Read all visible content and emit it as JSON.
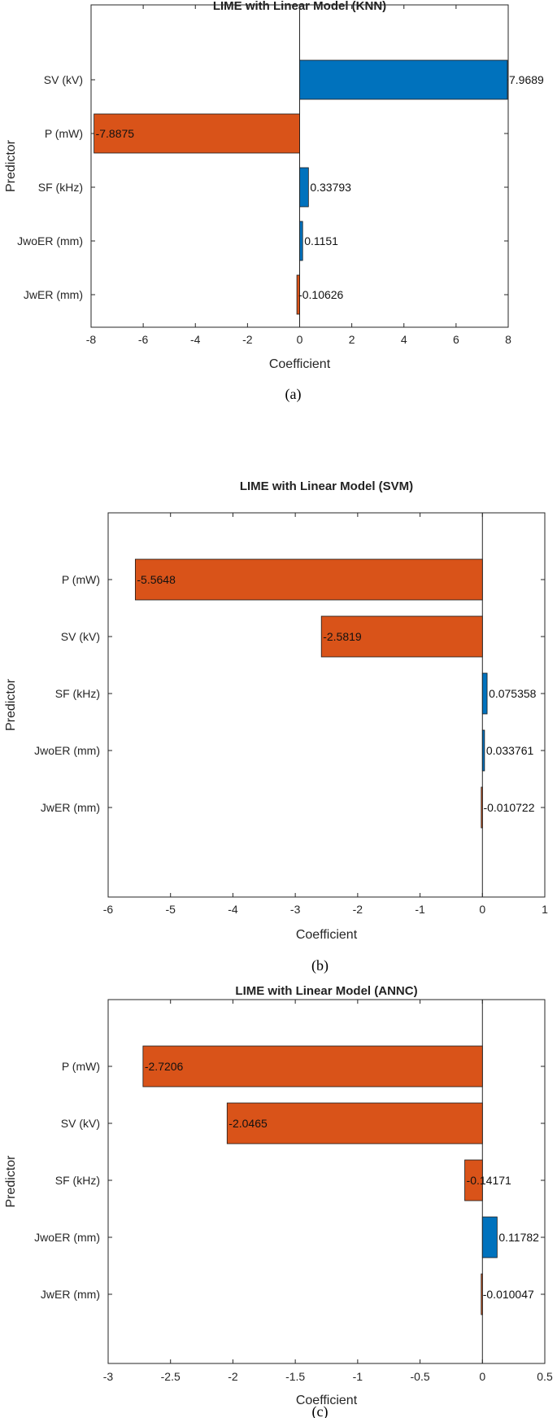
{
  "colors": {
    "positive": "#0072BD",
    "negative": "#D95319",
    "axis": "#262626"
  },
  "chart_data": [
    {
      "type": "bar",
      "orientation": "horizontal",
      "title": "LIME with Linear Model (KNN)",
      "xlabel": "Coefficient",
      "ylabel": "Predictor",
      "caption": "(a)",
      "xlim": [
        -8,
        8
      ],
      "xticks": [
        "-8",
        "-6",
        "-4",
        "-2",
        "0",
        "2",
        "4",
        "6",
        "8"
      ],
      "categories": [
        "SV (kV)",
        "P (mW)",
        "SF (kHz)",
        "JwoER (mm)",
        "JwER (mm)"
      ],
      "values": [
        7.9689,
        -7.8875,
        0.33793,
        0.1151,
        -0.10626
      ],
      "value_labels": [
        "7.9689",
        "-7.8875",
        "0.33793",
        "0.1151",
        "-0.10626"
      ]
    },
    {
      "type": "bar",
      "orientation": "horizontal",
      "title": "LIME with Linear Model (SVM)",
      "xlabel": "Coefficient",
      "ylabel": "Predictor",
      "caption": "(b)",
      "xlim": [
        -6,
        1
      ],
      "xticks": [
        "-6",
        "-5",
        "-4",
        "-3",
        "-2",
        "-1",
        "0",
        "1"
      ],
      "categories": [
        "P (mW)",
        "SV (kV)",
        "SF (kHz)",
        "JwoER (mm)",
        "JwER (mm)"
      ],
      "values": [
        -5.5648,
        -2.5819,
        0.075358,
        0.033761,
        -0.010722
      ],
      "value_labels": [
        "-5.5648",
        "-2.5819",
        "0.075358",
        "0.033761",
        "-0.010722"
      ]
    },
    {
      "type": "bar",
      "orientation": "horizontal",
      "title": "LIME with Linear Model (ANNC)",
      "xlabel": "Coefficient",
      "ylabel": "Predictor",
      "caption": "(c)",
      "xlim": [
        -3,
        0.5
      ],
      "xticks": [
        "-3",
        "-2.5",
        "-2",
        "-1.5",
        "-1",
        "-0.5",
        "0",
        "0.5"
      ],
      "categories": [
        "P (mW)",
        "SV (kV)",
        "SF (kHz)",
        "JwoER (mm)",
        "JwER (mm)"
      ],
      "values": [
        -2.7206,
        -2.0465,
        -0.14171,
        0.11782,
        -0.010047
      ],
      "value_labels": [
        "-2.7206",
        "-2.0465",
        "-0.14171",
        "0.11782",
        "-0.010047"
      ]
    }
  ]
}
